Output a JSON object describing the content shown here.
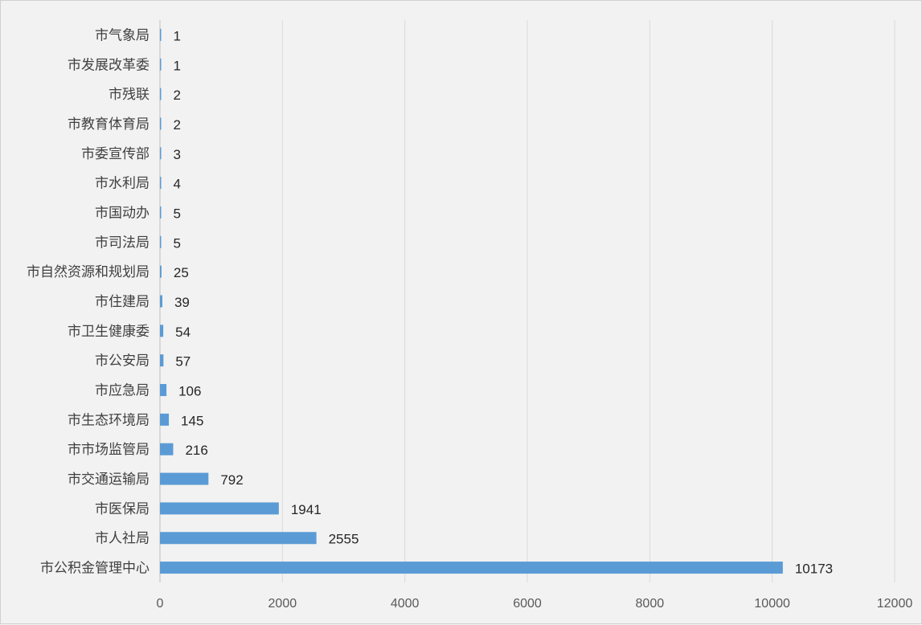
{
  "chart_data": {
    "type": "bar",
    "orientation": "horizontal",
    "categories": [
      "市气象局",
      "市发展改革委",
      "市残联",
      "市教育体育局",
      "市委宣传部",
      "市水利局",
      "市国动办",
      "市司法局",
      "市自然资源和规划局",
      "市住建局",
      "市卫生健康委",
      "市公安局",
      "市应急局",
      "市生态环境局",
      "市市场监管局",
      "市交通运输局",
      "市医保局",
      "市人社局",
      "市公积金管理中心"
    ],
    "values": [
      1,
      1,
      2,
      2,
      3,
      4,
      5,
      5,
      25,
      39,
      54,
      57,
      106,
      145,
      216,
      792,
      1941,
      2555,
      10173
    ],
    "xlim": [
      0,
      12000
    ],
    "x_ticks": [
      0,
      2000,
      4000,
      6000,
      8000,
      10000,
      12000
    ],
    "grid": true,
    "data_labels": true,
    "bar_color": "#5b9bd5",
    "title": "",
    "xlabel": "",
    "ylabel": ""
  }
}
